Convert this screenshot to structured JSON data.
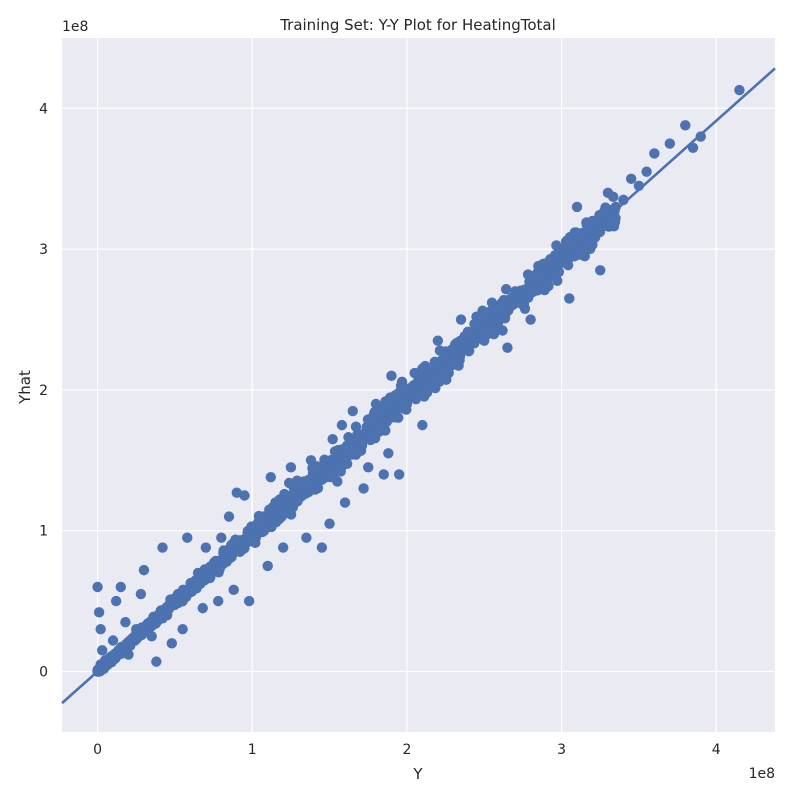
{
  "chart_data": {
    "type": "scatter",
    "title": "Training Set: Y-Y Plot for HeatingTotal",
    "xlabel": "Y",
    "ylabel": "Yhat",
    "x_offset_label": "1e8",
    "y_offset_label": "1e8",
    "xlim": [
      -0.23,
      4.38
    ],
    "ylim": [
      -0.43,
      4.5
    ],
    "x_ticks": [
      0,
      1,
      2,
      3,
      4
    ],
    "y_ticks": [
      0,
      1,
      2,
      3,
      4
    ],
    "x_tick_labels": [
      "0",
      "1",
      "2",
      "3",
      "4"
    ],
    "y_tick_labels": [
      "0",
      "1",
      "2",
      "3",
      "4"
    ],
    "grid": true,
    "background_color": "#eaeaf2",
    "grid_color": "#ffffff",
    "point_color": "#4c72b0",
    "line_color": "#4c72b0",
    "fit_line": {
      "slope": 0.978,
      "intercept": 0.0
    },
    "series": [
      {
        "points": [
          [
            0.0,
            0.0
          ],
          [
            0.01,
            0.02
          ],
          [
            0.02,
            0.05
          ],
          [
            0.0,
            0.6
          ],
          [
            0.01,
            0.42
          ],
          [
            0.02,
            0.3
          ],
          [
            0.03,
            0.15
          ],
          [
            0.05,
            0.08
          ],
          [
            0.08,
            0.1
          ],
          [
            0.1,
            0.22
          ],
          [
            0.12,
            0.5
          ],
          [
            0.15,
            0.6
          ],
          [
            0.18,
            0.35
          ],
          [
            0.2,
            0.12
          ],
          [
            0.25,
            0.3
          ],
          [
            0.28,
            0.55
          ],
          [
            0.3,
            0.72
          ],
          [
            0.35,
            0.25
          ],
          [
            0.38,
            0.07
          ],
          [
            0.42,
            0.88
          ],
          [
            0.45,
            0.4
          ],
          [
            0.48,
            0.2
          ],
          [
            0.52,
            0.55
          ],
          [
            0.55,
            0.3
          ],
          [
            0.58,
            0.95
          ],
          [
            0.6,
            0.6
          ],
          [
            0.65,
            0.7
          ],
          [
            0.68,
            0.45
          ],
          [
            0.7,
            0.88
          ],
          [
            0.75,
            0.75
          ],
          [
            0.78,
            0.5
          ],
          [
            0.8,
            0.95
          ],
          [
            0.85,
            1.1
          ],
          [
            0.88,
            0.58
          ],
          [
            0.9,
            1.27
          ],
          [
            0.92,
            0.85
          ],
          [
            0.95,
            1.25
          ],
          [
            0.98,
            0.5
          ],
          [
            1.0,
            1.0
          ],
          [
            1.05,
            1.05
          ],
          [
            1.1,
            0.75
          ],
          [
            1.12,
            1.38
          ],
          [
            1.15,
            1.2
          ],
          [
            1.2,
            0.88
          ],
          [
            1.25,
            1.45
          ],
          [
            1.3,
            1.28
          ],
          [
            1.35,
            0.95
          ],
          [
            1.38,
            1.5
          ],
          [
            1.4,
            1.42
          ],
          [
            1.45,
            0.88
          ],
          [
            1.5,
            1.05
          ],
          [
            1.52,
            1.65
          ],
          [
            1.55,
            1.35
          ],
          [
            1.58,
            1.75
          ],
          [
            1.6,
            1.2
          ],
          [
            1.62,
            1.55
          ],
          [
            1.65,
            1.85
          ],
          [
            1.7,
            1.6
          ],
          [
            1.72,
            1.3
          ],
          [
            1.75,
            1.45
          ],
          [
            1.8,
            1.9
          ],
          [
            1.85,
            1.4
          ],
          [
            1.88,
            1.55
          ],
          [
            1.9,
            2.1
          ],
          [
            1.95,
            1.4
          ],
          [
            2.0,
            1.95
          ],
          [
            2.05,
            2.12
          ],
          [
            2.1,
            1.75
          ],
          [
            2.15,
            2.05
          ],
          [
            2.2,
            2.35
          ],
          [
            2.25,
            2.1
          ],
          [
            2.3,
            2.25
          ],
          [
            2.35,
            2.5
          ],
          [
            2.4,
            2.4
          ],
          [
            2.45,
            2.52
          ],
          [
            2.5,
            2.35
          ],
          [
            2.55,
            2.62
          ],
          [
            2.6,
            2.55
          ],
          [
            2.65,
            2.3
          ],
          [
            2.7,
            2.7
          ],
          [
            2.75,
            2.62
          ],
          [
            2.8,
            2.5
          ],
          [
            2.85,
            2.88
          ],
          [
            2.9,
            2.75
          ],
          [
            2.95,
            2.85
          ],
          [
            3.0,
            3.0
          ],
          [
            3.05,
            2.65
          ],
          [
            3.1,
            3.3
          ],
          [
            3.15,
            2.95
          ],
          [
            3.2,
            3.2
          ],
          [
            3.25,
            2.85
          ],
          [
            3.3,
            3.4
          ],
          [
            3.35,
            3.3
          ],
          [
            3.4,
            3.35
          ],
          [
            3.45,
            3.5
          ],
          [
            3.5,
            3.45
          ],
          [
            3.55,
            3.55
          ],
          [
            3.6,
            3.68
          ],
          [
            3.7,
            3.75
          ],
          [
            3.8,
            3.88
          ],
          [
            3.85,
            3.72
          ],
          [
            3.9,
            3.8
          ],
          [
            4.15,
            4.13
          ]
        ]
      }
    ]
  }
}
